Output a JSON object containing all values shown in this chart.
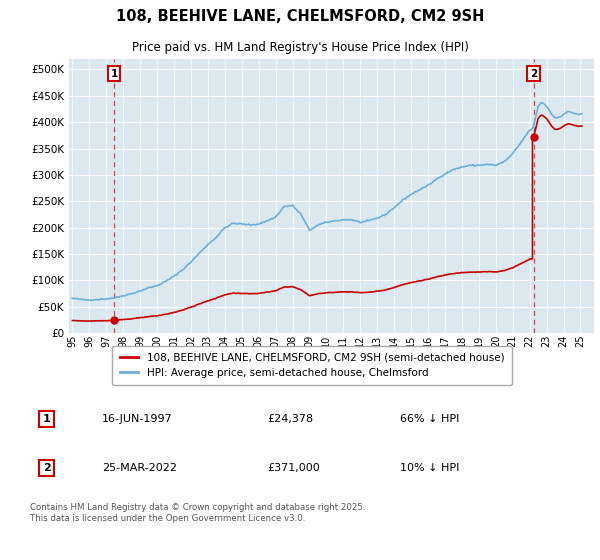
{
  "title": "108, BEEHIVE LANE, CHELMSFORD, CM2 9SH",
  "subtitle": "Price paid vs. HM Land Registry's House Price Index (HPI)",
  "ylim": [
    0,
    520000
  ],
  "yticks": [
    0,
    50000,
    100000,
    150000,
    200000,
    250000,
    300000,
    350000,
    400000,
    450000,
    500000
  ],
  "background_color": "#dce8f0",
  "hpi_color": "#6baed6",
  "price_color": "#cc0000",
  "legend_label_price": "108, BEEHIVE LANE, CHELMSFORD, CM2 9SH (semi-detached house)",
  "legend_label_hpi": "HPI: Average price, semi-detached house, Chelmsford",
  "annotation1_date": "16-JUN-1997",
  "annotation1_price": "£24,378",
  "annotation1_pct": "66% ↓ HPI",
  "annotation2_date": "25-MAR-2022",
  "annotation2_price": "£371,000",
  "annotation2_pct": "10% ↓ HPI",
  "footer": "Contains HM Land Registry data © Crown copyright and database right 2025.\nThis data is licensed under the Open Government Licence v3.0.",
  "vline1_x": 1997.46,
  "vline2_x": 2022.23,
  "sale1_price": 24378,
  "sale2_price": 371000,
  "xmin": 1994.8,
  "xmax": 2025.8
}
